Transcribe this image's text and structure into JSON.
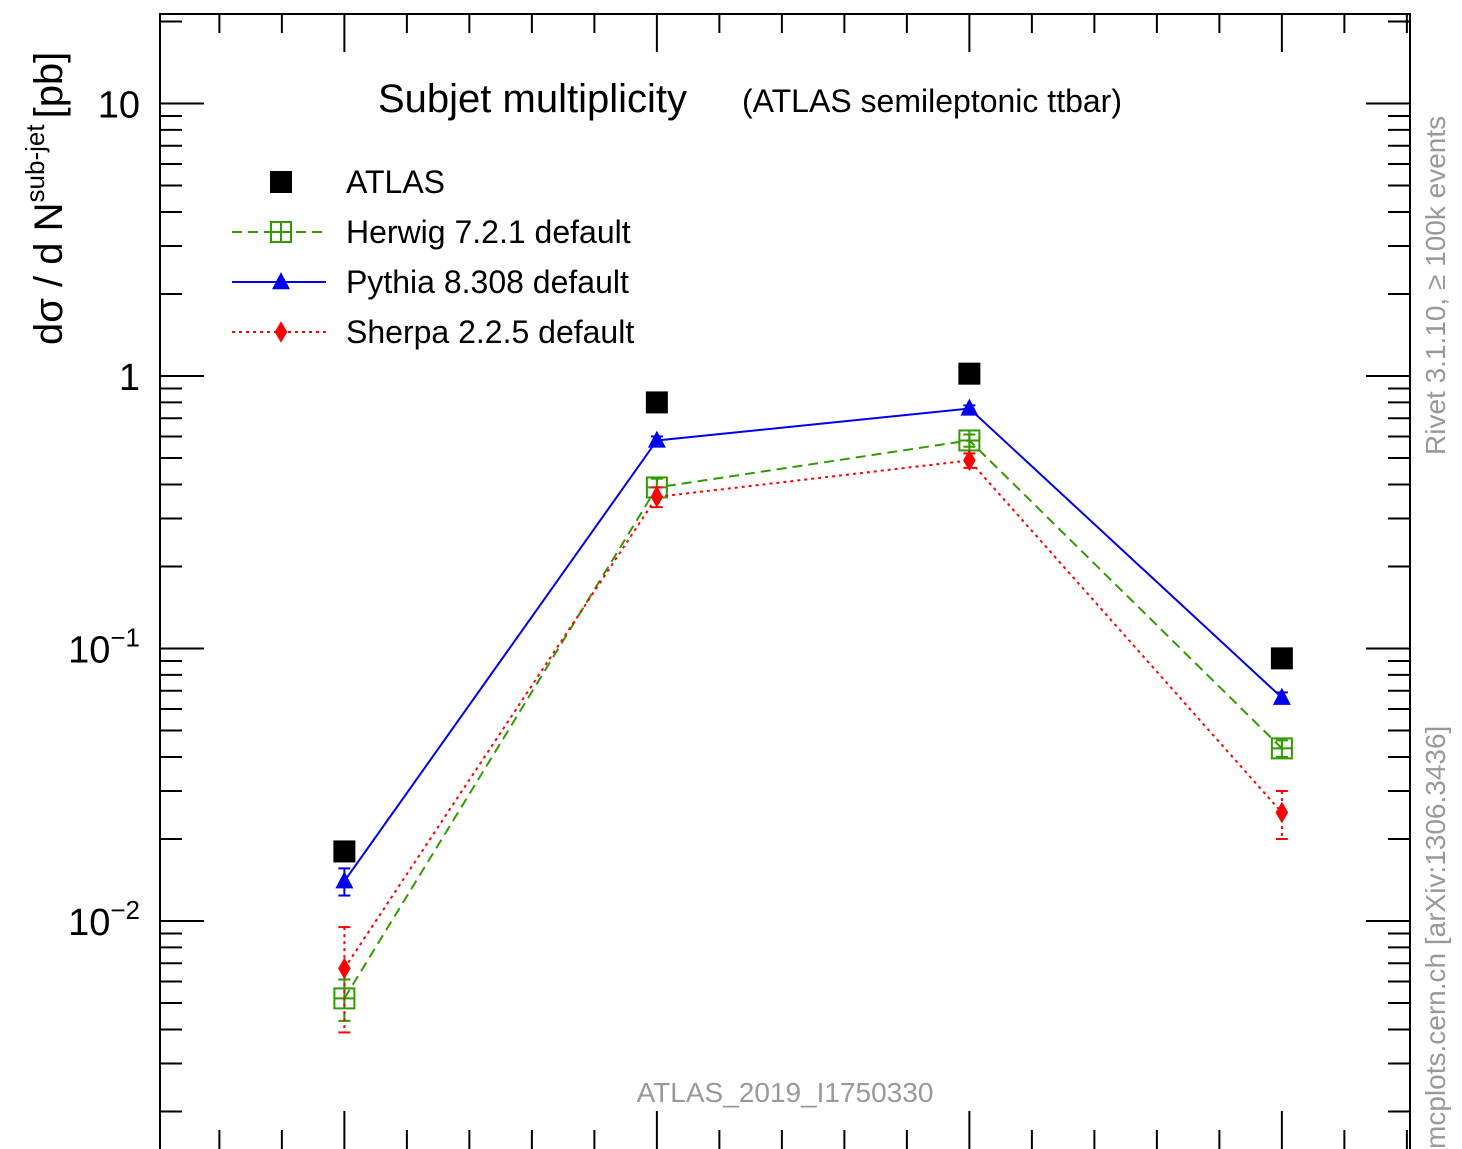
{
  "chart_data": {
    "type": "line",
    "title": "Subjet multiplicity",
    "subtitle": "(ATLAS semileptonic ttbar)",
    "ylabel": "dσ / d N",
    "ylabel_sup": "sub-jet",
    "ylabel_unit": "[pb]",
    "yscale": "log",
    "ylim": [
      0.002,
      20
    ],
    "x": [
      1,
      2,
      3,
      4
    ],
    "xlim": [
      0.41,
      4.41
    ],
    "y_ticks": [
      {
        "value": 10,
        "base": "10",
        "exp": ""
      },
      {
        "value": 1,
        "base": "1",
        "exp": ""
      },
      {
        "value": 0.1,
        "base": "10",
        "exp": "−1"
      },
      {
        "value": 0.01,
        "base": "10",
        "exp": "−2"
      }
    ],
    "legend_position": "top-left",
    "series": [
      {
        "name": "ATLAS",
        "values": [
          0.018,
          0.8,
          1.02,
          0.092
        ],
        "color": "#000000",
        "marker": "square-filled",
        "line": "none"
      },
      {
        "name": "Herwig 7.2.1 default",
        "values": [
          0.0052,
          0.39,
          0.58,
          0.043
        ],
        "errors": [
          0.0009,
          0.03,
          0.03,
          0.003
        ],
        "color": "#339900",
        "marker": "square-open",
        "line": "dashed"
      },
      {
        "name": "Pythia 8.308 default",
        "values": [
          0.014,
          0.58,
          0.76,
          0.066
        ],
        "errors": [
          0.0016,
          0.02,
          0.02,
          0.003
        ],
        "color": "#0000ee",
        "marker": "triangle-filled",
        "line": "solid"
      },
      {
        "name": "Sherpa 2.2.5 default",
        "values": [
          0.0067,
          0.36,
          0.49,
          0.025
        ],
        "errors": [
          0.0028,
          0.03,
          0.03,
          0.005
        ],
        "color": "#ff0000",
        "marker": "diamond-filled",
        "line": "dotted"
      }
    ],
    "watermark": "ATLAS_2019_I1750330",
    "side_label_top": "Rivet 3.1.10, ≥ 100k events",
    "side_label_bottom": "mcplots.cern.ch [arXiv:1306.3436]"
  }
}
